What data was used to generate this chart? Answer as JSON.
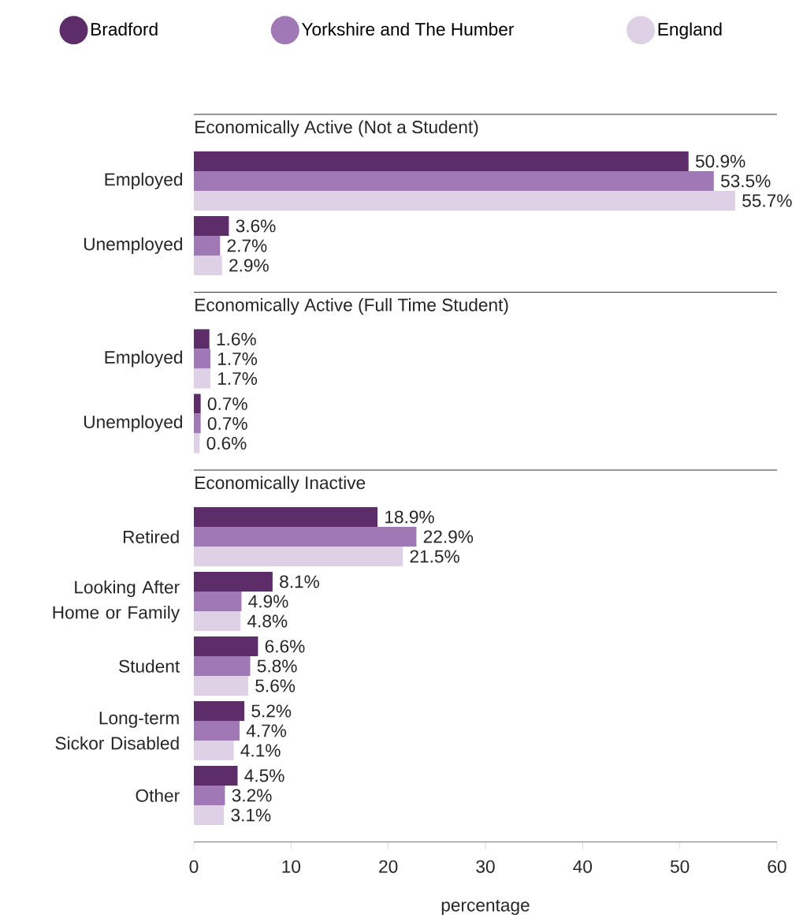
{
  "chart_data": [
    {
      "type": "bar",
      "orientation": "horizontal",
      "title": "Economically Active (Not a Student)",
      "categories": [
        "Employed",
        "Unemployed"
      ],
      "series": [
        {
          "name": "Bradford",
          "color": "#5c2d69",
          "values": [
            50.9,
            3.6
          ],
          "value_labels": [
            "50.9%",
            "3.6%"
          ]
        },
        {
          "name": "Yorkshire and The Humber",
          "color": "#a178b6",
          "values": [
            53.5,
            2.7
          ],
          "value_labels": [
            "53.5%",
            "2.7%"
          ]
        },
        {
          "name": "England",
          "color": "#ded1e5",
          "values": [
            55.7,
            2.9
          ],
          "value_labels": [
            "55.7%",
            "2.9%"
          ]
        }
      ],
      "xlim": [
        0,
        60
      ],
      "tick_labels": "y",
      "legend": "top"
    },
    {
      "type": "bar",
      "orientation": "horizontal",
      "title": "Economically Active (Full Time Student)",
      "categories": [
        "Employed",
        "Unemployed"
      ],
      "series": [
        {
          "color": "#5c2d69",
          "values": [
            1.6,
            0.7
          ],
          "value_labels": [
            "1.6%",
            "0.7%"
          ]
        },
        {
          "color": "#a178b6",
          "values": [
            1.7,
            0.7
          ],
          "value_labels": [
            "1.7%",
            "0.7%"
          ]
        },
        {
          "color": "#ded1e5",
          "values": [
            1.7,
            0.6
          ],
          "value_labels": [
            "1.7%",
            "0.6%"
          ]
        }
      ],
      "xlim": [
        0,
        60
      ],
      "tick_labels": "y"
    },
    {
      "type": "bar",
      "orientation": "horizontal",
      "title": "Economically Inactive",
      "categories": [
        "Retired",
        "Looking After Home or Family",
        "Student",
        "Long-term Sickor Disabled",
        "Other"
      ],
      "series": [
        {
          "color": "#5c2d69",
          "values": [
            18.9,
            8.1,
            6.6,
            5.2,
            4.5
          ],
          "value_labels": [
            "18.9%",
            "8.1%",
            "6.6%",
            "5.2%",
            "4.5%"
          ]
        },
        {
          "color": "#a178b6",
          "values": [
            22.9,
            4.9,
            5.8,
            4.7,
            3.2
          ],
          "value_labels": [
            "22.9%",
            "4.9%",
            "5.8%",
            "4.7%",
            "3.2%"
          ]
        },
        {
          "color": "#ded1e5",
          "values": [
            21.5,
            4.8,
            5.6,
            4.1,
            3.1
          ],
          "value_labels": [
            "21.5%",
            "4.8%",
            "5.6%",
            "4.1%",
            "3.1%"
          ]
        }
      ],
      "xlabel": "percentage",
      "xlim": [
        0,
        60
      ],
      "xticks": [
        0,
        10,
        20,
        30,
        40,
        50,
        60
      ]
    }
  ]
}
